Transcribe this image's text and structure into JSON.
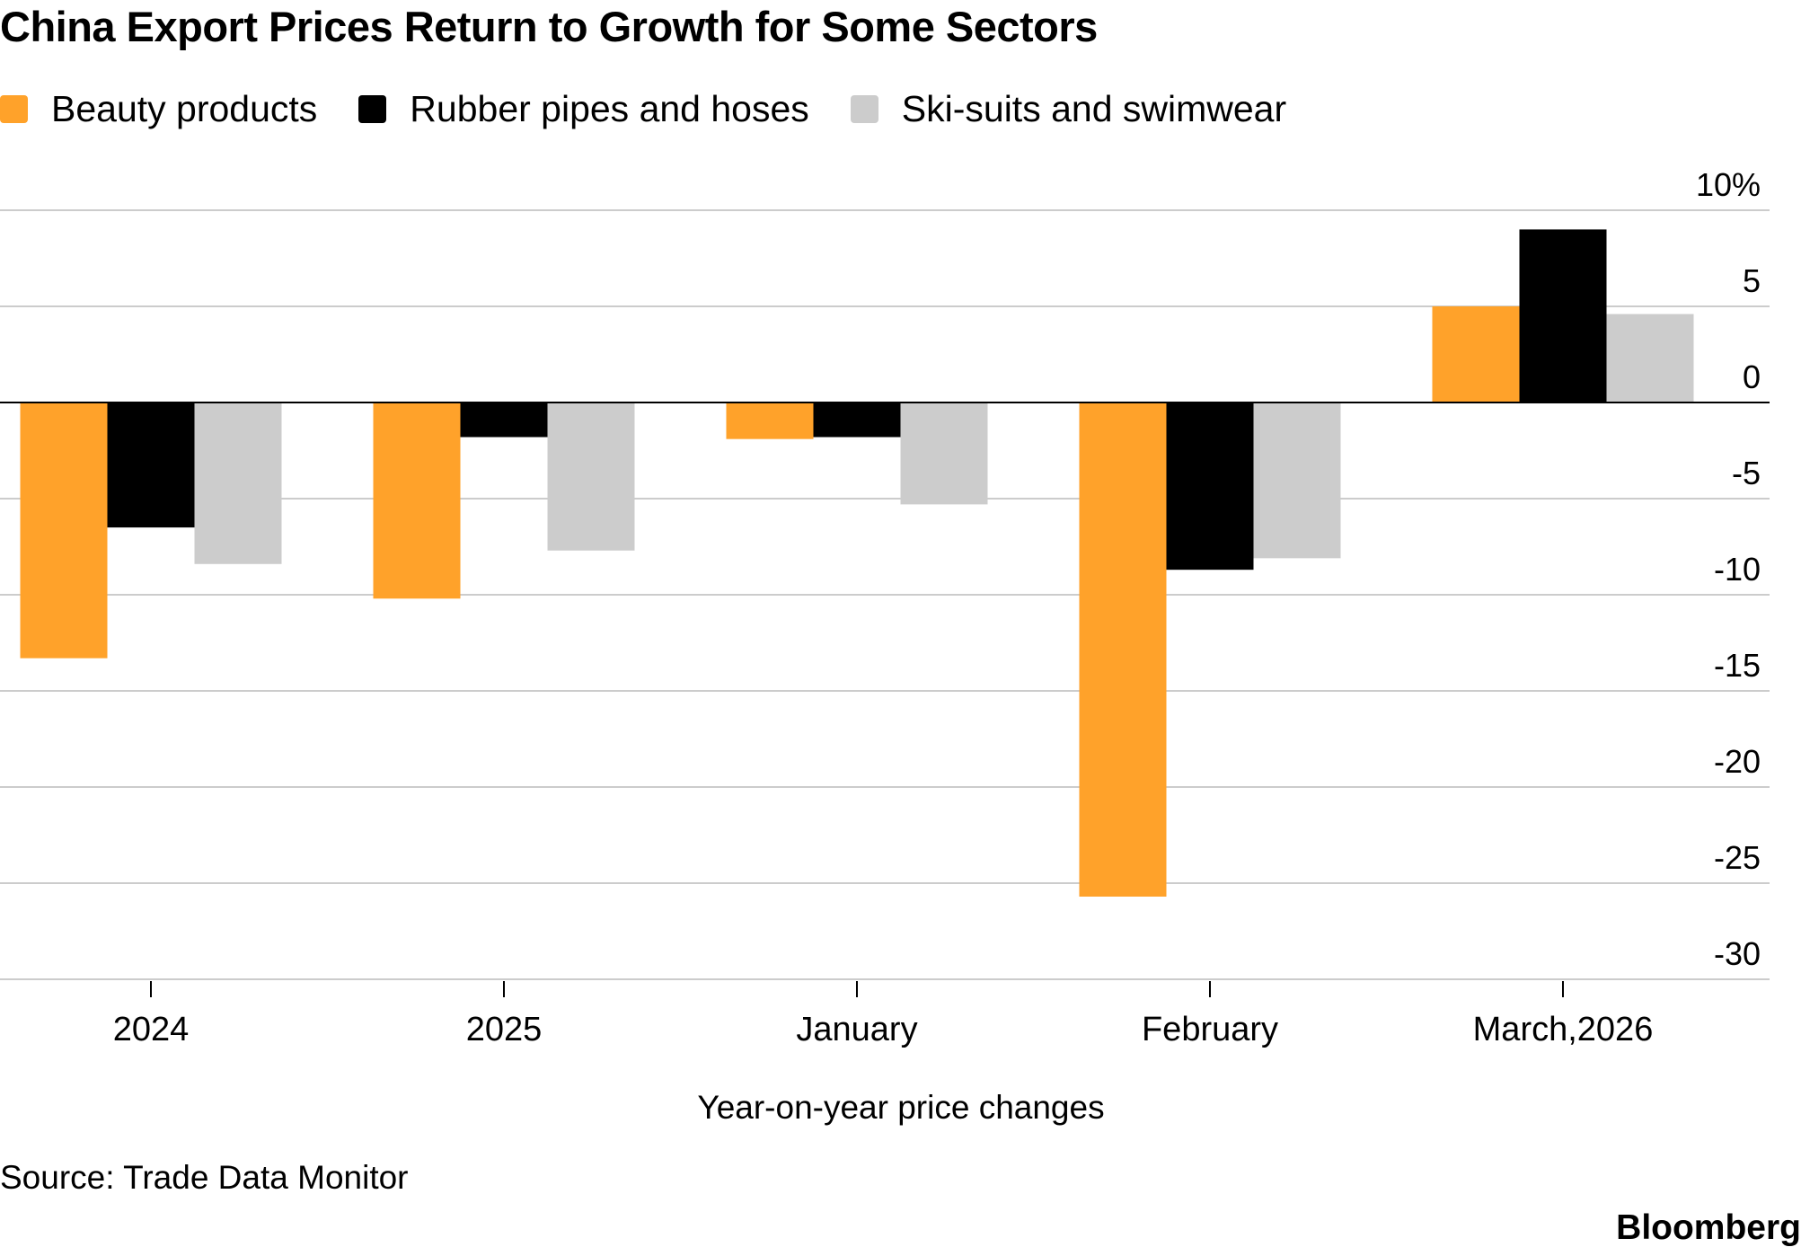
{
  "header": {
    "title": "China Export Prices Return to Growth for Some Sectors"
  },
  "legend": [
    {
      "label": "Beauty products",
      "color": "#FFA22A"
    },
    {
      "label": "Rubber pipes and hoses",
      "color": "#000000"
    },
    {
      "label": "Ski-suits and swimwear",
      "color": "#CCCCCC"
    }
  ],
  "chart_data": {
    "type": "bar",
    "title": "China Export Prices Return to Growth for Some Sectors",
    "xlabel": "Year-on-year price changes",
    "ylabel": "",
    "categories": [
      "2024",
      "2025",
      "January",
      "February",
      "March,2026"
    ],
    "series": [
      {
        "name": "Beauty products",
        "color": "#FFA22A",
        "values": [
          -13.3,
          -10.2,
          -1.9,
          -25.7,
          5.0
        ]
      },
      {
        "name": "Rubber pipes and hoses",
        "color": "#000000",
        "values": [
          -6.5,
          -1.8,
          -1.8,
          -8.7,
          9.0
        ]
      },
      {
        "name": "Ski-suits and swimwear",
        "color": "#CCCCCC",
        "values": [
          -8.4,
          -7.7,
          -5.3,
          -8.1,
          4.6
        ]
      }
    ],
    "ylim": [
      -30,
      10
    ],
    "yticks": [
      10,
      5,
      0,
      -5,
      -10,
      -15,
      -20,
      -25,
      -30
    ],
    "ytick_labels": [
      "10%",
      "5",
      "0",
      "-5",
      "-10",
      "-15",
      "-20",
      "-25",
      "-30"
    ],
    "grid": true,
    "legend_position": "top-left"
  },
  "footer": {
    "source": "Source: Trade Data Monitor",
    "brand": "Bloomberg"
  }
}
